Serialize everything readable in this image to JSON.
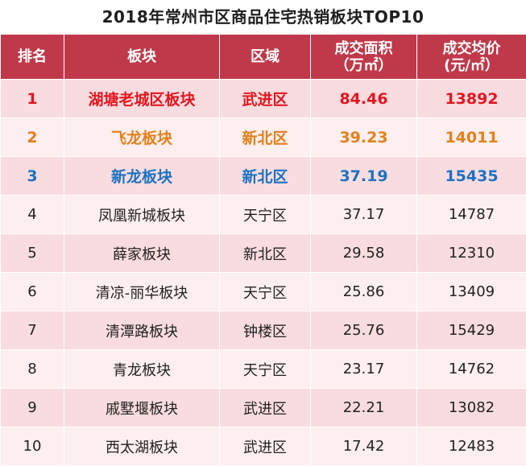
{
  "title": "2018年常州市区商品住宅热销板块TOP10",
  "headers": {
    "rank": "排名",
    "block": "板块",
    "district": "区域",
    "area_line1": "成交面积",
    "area_line2": "（万㎡）",
    "price_line1": "成交均价",
    "price_line2": "(元/㎡）"
  },
  "colors": {
    "header_bg": "#c0394a",
    "rank1": "#e3161f",
    "rank2": "#e3801a",
    "rank3": "#1d72c2"
  },
  "rows": [
    {
      "rank": "1",
      "block": "湖塘老城区板块",
      "district": "武进区",
      "area": "84.46",
      "price": "13892"
    },
    {
      "rank": "2",
      "block": "飞龙板块",
      "district": "新北区",
      "area": "39.23",
      "price": "14011"
    },
    {
      "rank": "3",
      "block": "新龙板块",
      "district": "新北区",
      "area": "37.19",
      "price": "15435"
    },
    {
      "rank": "4",
      "block": "凤凰新城板块",
      "district": "天宁区",
      "area": "37.17",
      "price": "14787"
    },
    {
      "rank": "5",
      "block": "薛家板块",
      "district": "新北区",
      "area": "29.58",
      "price": "12310"
    },
    {
      "rank": "6",
      "block": "清凉-丽华板块",
      "district": "天宁区",
      "area": "25.86",
      "price": "13409"
    },
    {
      "rank": "7",
      "block": "清潭路板块",
      "district": "钟楼区",
      "area": "25.76",
      "price": "15429"
    },
    {
      "rank": "8",
      "block": "青龙板块",
      "district": "天宁区",
      "area": "23.17",
      "price": "14762"
    },
    {
      "rank": "9",
      "block": "戚墅堰板块",
      "district": "武进区",
      "area": "22.21",
      "price": "13082"
    },
    {
      "rank": "10",
      "block": "西太湖板块",
      "district": "武进区",
      "area": "17.42",
      "price": "12483"
    }
  ]
}
